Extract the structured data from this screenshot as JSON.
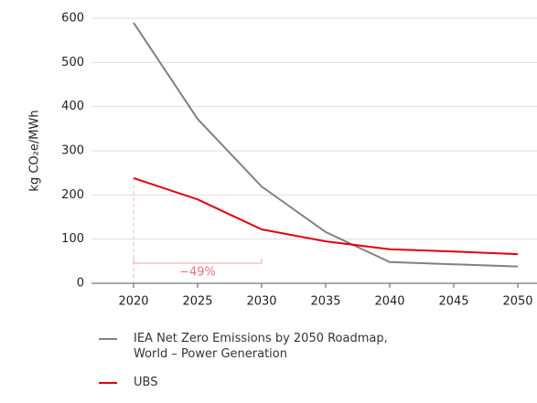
{
  "chart_data": {
    "type": "line",
    "y_label": "kg CO₂e/MWh",
    "x": [
      2020,
      2025,
      2030,
      2035,
      2040,
      2045,
      2050
    ],
    "series": [
      {
        "name": "IEA Net Zero Emissions by 2050 Roadmap, World – Power Generation",
        "color": "#808080",
        "values": [
          590,
          372,
          219,
          116,
          48,
          43,
          38
        ]
      },
      {
        "name": "UBS",
        "color": "#e3000f",
        "values": [
          238,
          190,
          122,
          95,
          77,
          72,
          66
        ]
      }
    ],
    "annotation": "−49%",
    "xlim": [
      2020,
      2050
    ],
    "xticks": [
      2020,
      2025,
      2030,
      2035,
      2040,
      2045,
      2050
    ],
    "ylim": [
      0,
      600
    ],
    "yticks": [
      0,
      100,
      200,
      300,
      400,
      500,
      600
    ],
    "grid": true
  }
}
